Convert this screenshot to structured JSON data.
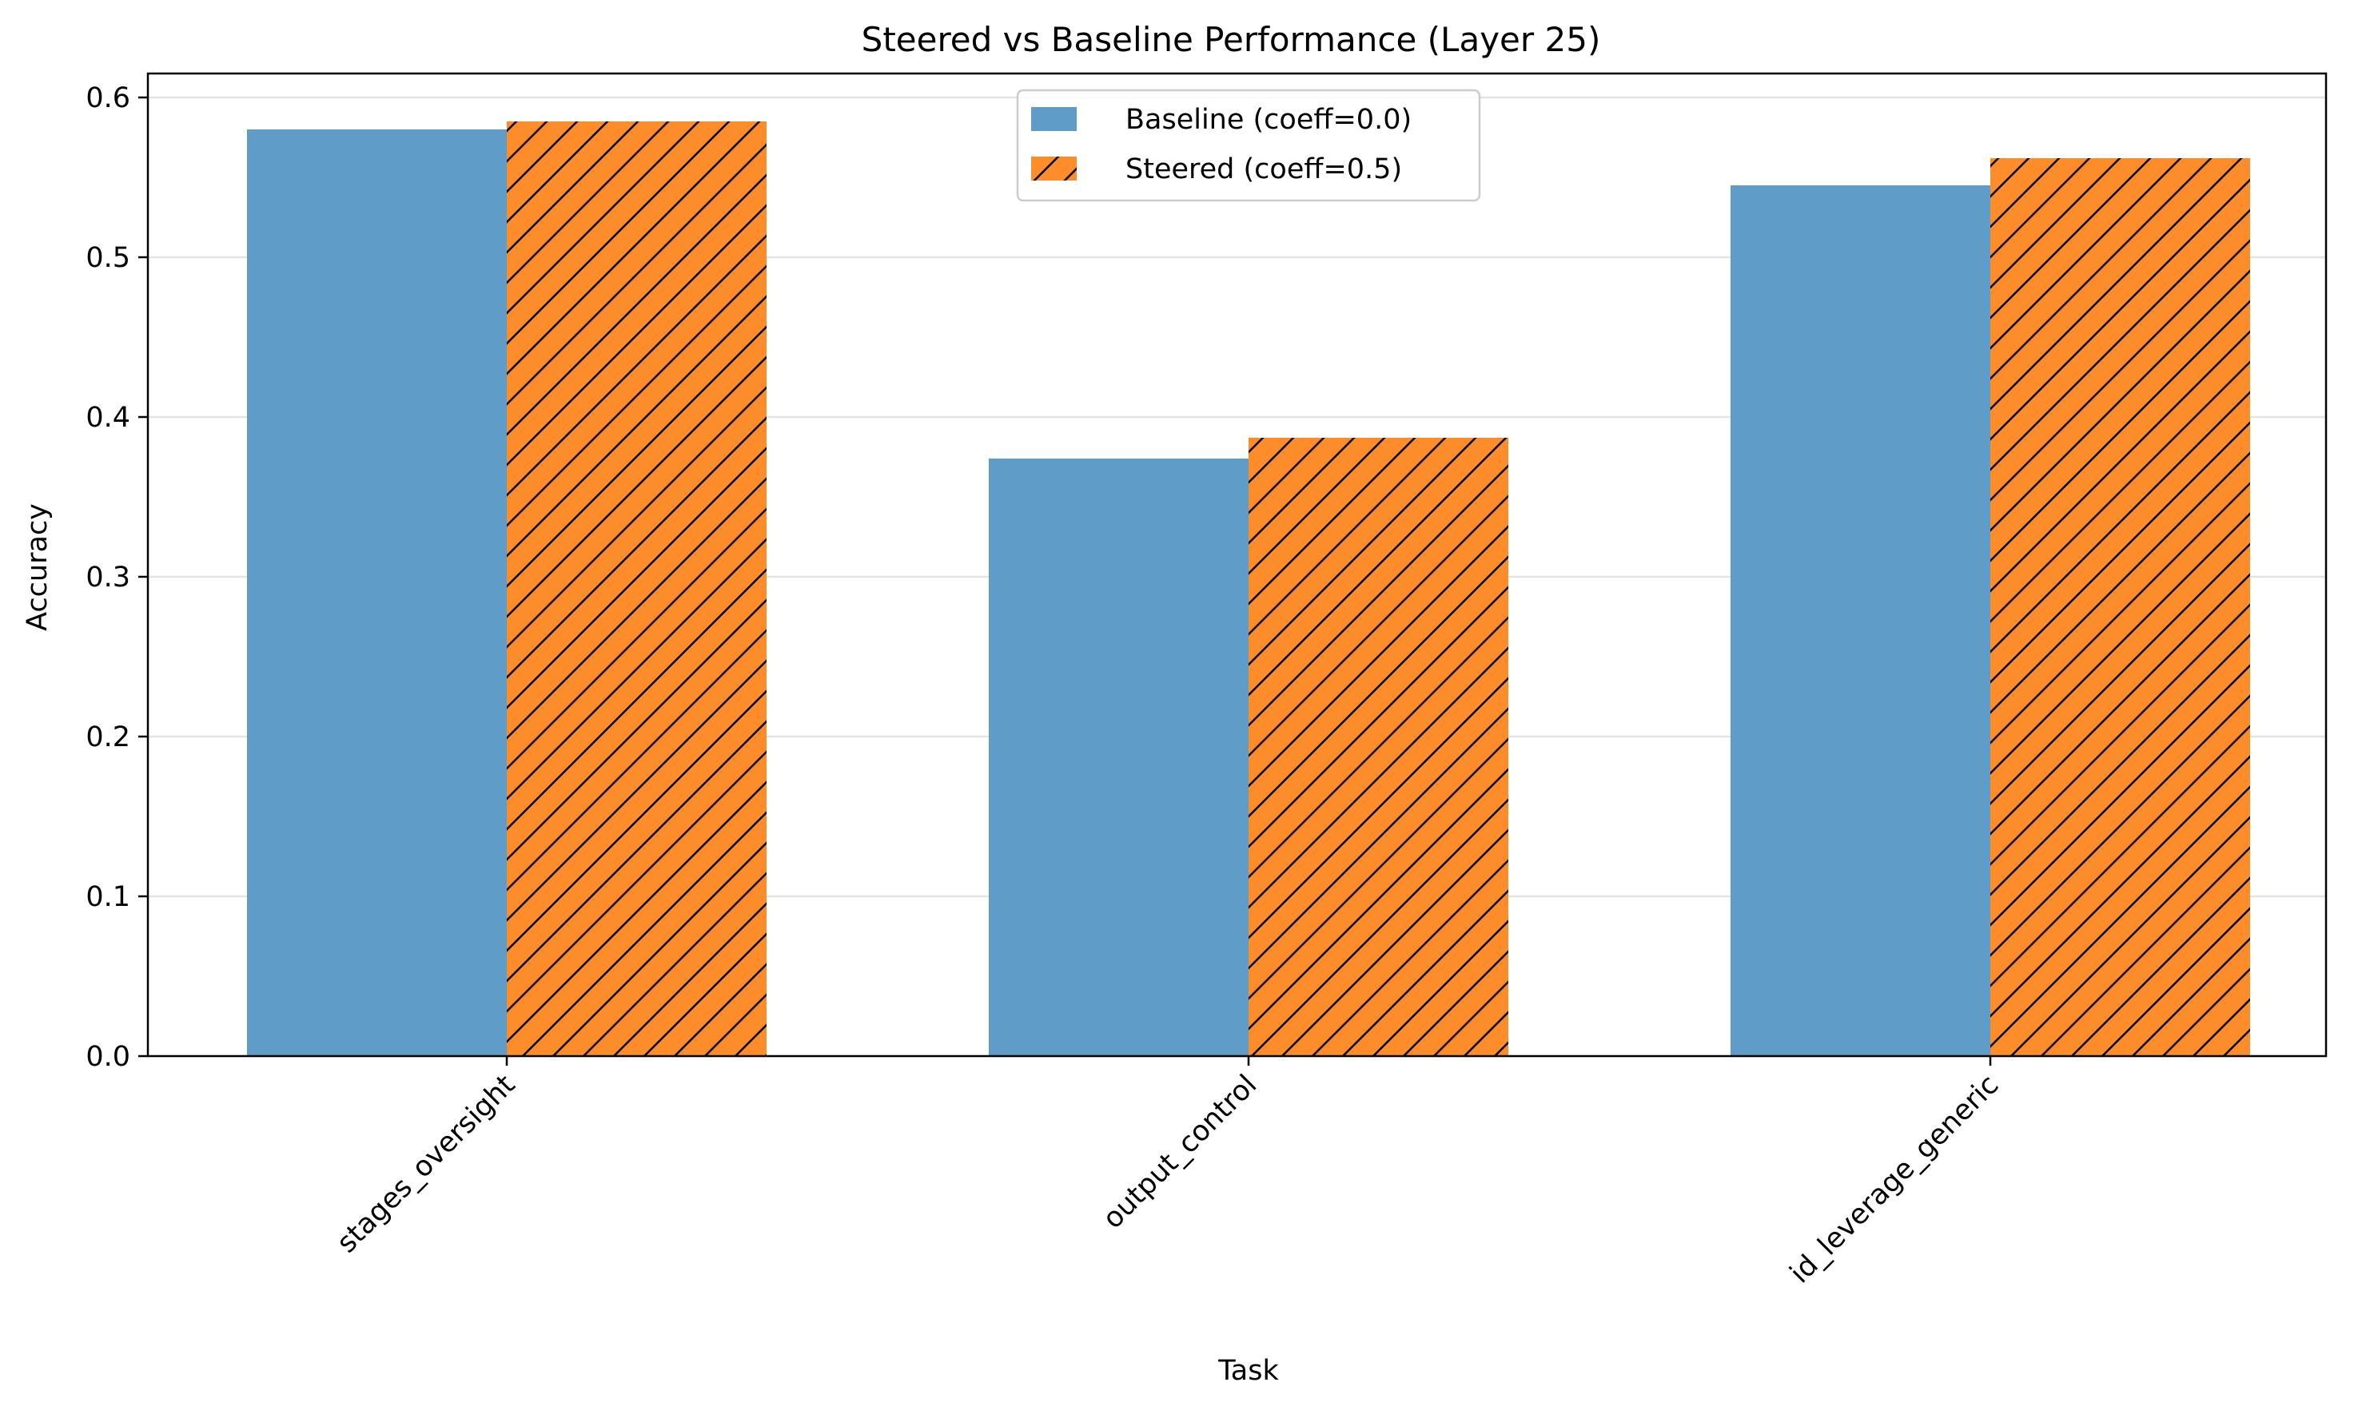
{
  "chart_data": {
    "type": "bar",
    "title": "Steered vs Baseline Performance (Layer 25)",
    "xlabel": "Task",
    "ylabel": "Accuracy",
    "categories": [
      "stages_oversight",
      "output_control",
      "id_leverage_generic"
    ],
    "series": [
      {
        "name": "Baseline (coeff=0.0)",
        "values": [
          0.58,
          0.374,
          0.545
        ],
        "color": "#5f9dc8",
        "hatch": "none"
      },
      {
        "name": "Steered (coeff=0.5)",
        "values": [
          0.585,
          0.387,
          0.562
        ],
        "color": "#fd8c2a",
        "hatch": "diagonal"
      }
    ],
    "ylim": [
      0.0,
      0.615
    ],
    "yticks": [
      "0.0",
      "0.1",
      "0.2",
      "0.3",
      "0.4",
      "0.5",
      "0.6"
    ],
    "grid": "y",
    "legend_position": "top-center",
    "xtick_rotation_deg": 45
  }
}
